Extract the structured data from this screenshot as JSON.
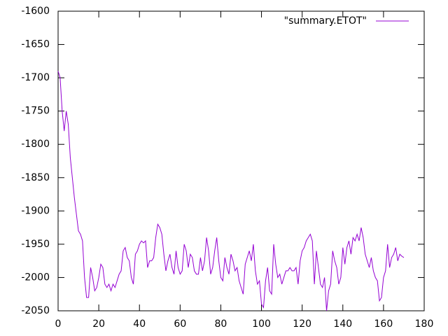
{
  "chart_data": {
    "type": "line",
    "x": [
      0,
      1,
      2,
      3,
      4,
      5,
      6,
      7,
      8,
      9,
      10,
      11,
      12,
      13,
      14,
      15,
      16,
      17,
      18,
      19,
      20,
      21,
      22,
      23,
      24,
      25,
      26,
      27,
      28,
      29,
      30,
      31,
      32,
      33,
      34,
      35,
      36,
      37,
      38,
      39,
      40,
      41,
      42,
      43,
      44,
      45,
      46,
      47,
      48,
      49,
      50,
      51,
      52,
      53,
      54,
      55,
      56,
      57,
      58,
      59,
      60,
      61,
      62,
      63,
      64,
      65,
      66,
      67,
      68,
      69,
      70,
      71,
      72,
      73,
      74,
      75,
      76,
      77,
      78,
      79,
      80,
      81,
      82,
      83,
      84,
      85,
      86,
      87,
      88,
      89,
      90,
      91,
      92,
      93,
      94,
      95,
      96,
      97,
      98,
      99,
      100,
      101,
      102,
      103,
      104,
      105,
      106,
      107,
      108,
      109,
      110,
      111,
      112,
      113,
      114,
      115,
      116,
      117,
      118,
      119,
      120,
      121,
      122,
      123,
      124,
      125,
      126,
      127,
      128,
      129,
      130,
      131,
      132,
      133,
      134,
      135,
      136,
      137,
      138,
      139,
      140,
      141,
      142,
      143,
      144,
      145,
      146,
      147,
      148,
      149,
      150,
      151,
      152,
      153,
      154,
      155,
      156,
      157,
      158,
      159,
      160,
      161,
      162,
      163,
      164,
      165,
      166,
      167,
      168,
      169,
      170
    ],
    "series": [
      {
        "name": "\"summary.ETOT\"",
        "color": "#9400d3",
        "values": [
          -1690,
          -1700,
          -1750,
          -1780,
          -1750,
          -1770,
          -1820,
          -1850,
          -1880,
          -1905,
          -1930,
          -1935,
          -1945,
          -2000,
          -2030,
          -2030,
          -1985,
          -2000,
          -2020,
          -2015,
          -2000,
          -1980,
          -1985,
          -2010,
          -2015,
          -2010,
          -2020,
          -2010,
          -2015,
          -2005,
          -1995,
          -1990,
          -1960,
          -1955,
          -1970,
          -1975,
          -2000,
          -2010,
          -1965,
          -1960,
          -1950,
          -1945,
          -1948,
          -1945,
          -1985,
          -1975,
          -1975,
          -1970,
          -1940,
          -1920,
          -1925,
          -1935,
          -1965,
          -1990,
          -1975,
          -1965,
          -1985,
          -1995,
          -1960,
          -1985,
          -1995,
          -1990,
          -1950,
          -1960,
          -1985,
          -1965,
          -1970,
          -1990,
          -1995,
          -1995,
          -1970,
          -1990,
          -1975,
          -1940,
          -1960,
          -1995,
          -1985,
          -1960,
          -1940,
          -1975,
          -2000,
          -2005,
          -1970,
          -1985,
          -1995,
          -1965,
          -1975,
          -1990,
          -1985,
          -2005,
          -2015,
          -2025,
          -1980,
          -1970,
          -1960,
          -1975,
          -1950,
          -1990,
          -2010,
          -2005,
          -2040,
          -2045,
          -2005,
          -1985,
          -2020,
          -2025,
          -1950,
          -1980,
          -2000,
          -1995,
          -2010,
          -2000,
          -1990,
          -1990,
          -1985,
          -1990,
          -1990,
          -1985,
          -2010,
          -1975,
          -1960,
          -1955,
          -1945,
          -1940,
          -1935,
          -1945,
          -2010,
          -1960,
          -1985,
          -2010,
          -2015,
          -2000,
          -2050,
          -2020,
          -2010,
          -1960,
          -1975,
          -1985,
          -2010,
          -2000,
          -1955,
          -1980,
          -1955,
          -1945,
          -1965,
          -1940,
          -1945,
          -1935,
          -1945,
          -1925,
          -1940,
          -1965,
          -1975,
          -1985,
          -1970,
          -1990,
          -2000,
          -2005,
          -2035,
          -2030,
          -2000,
          -1990,
          -1950,
          -1985,
          -1970,
          -1965,
          -1955,
          -1975,
          -1965,
          -1968,
          -1970
        ]
      }
    ],
    "xlim": [
      0,
      180
    ],
    "xticks": [
      0,
      20,
      40,
      60,
      80,
      100,
      120,
      140,
      160,
      180
    ],
    "ylim": [
      -2050,
      -1600
    ],
    "yticks": [
      -2050,
      -2000,
      -1950,
      -1900,
      -1850,
      -1800,
      -1750,
      -1700,
      -1650,
      -1600
    ],
    "legend": "top-right"
  }
}
